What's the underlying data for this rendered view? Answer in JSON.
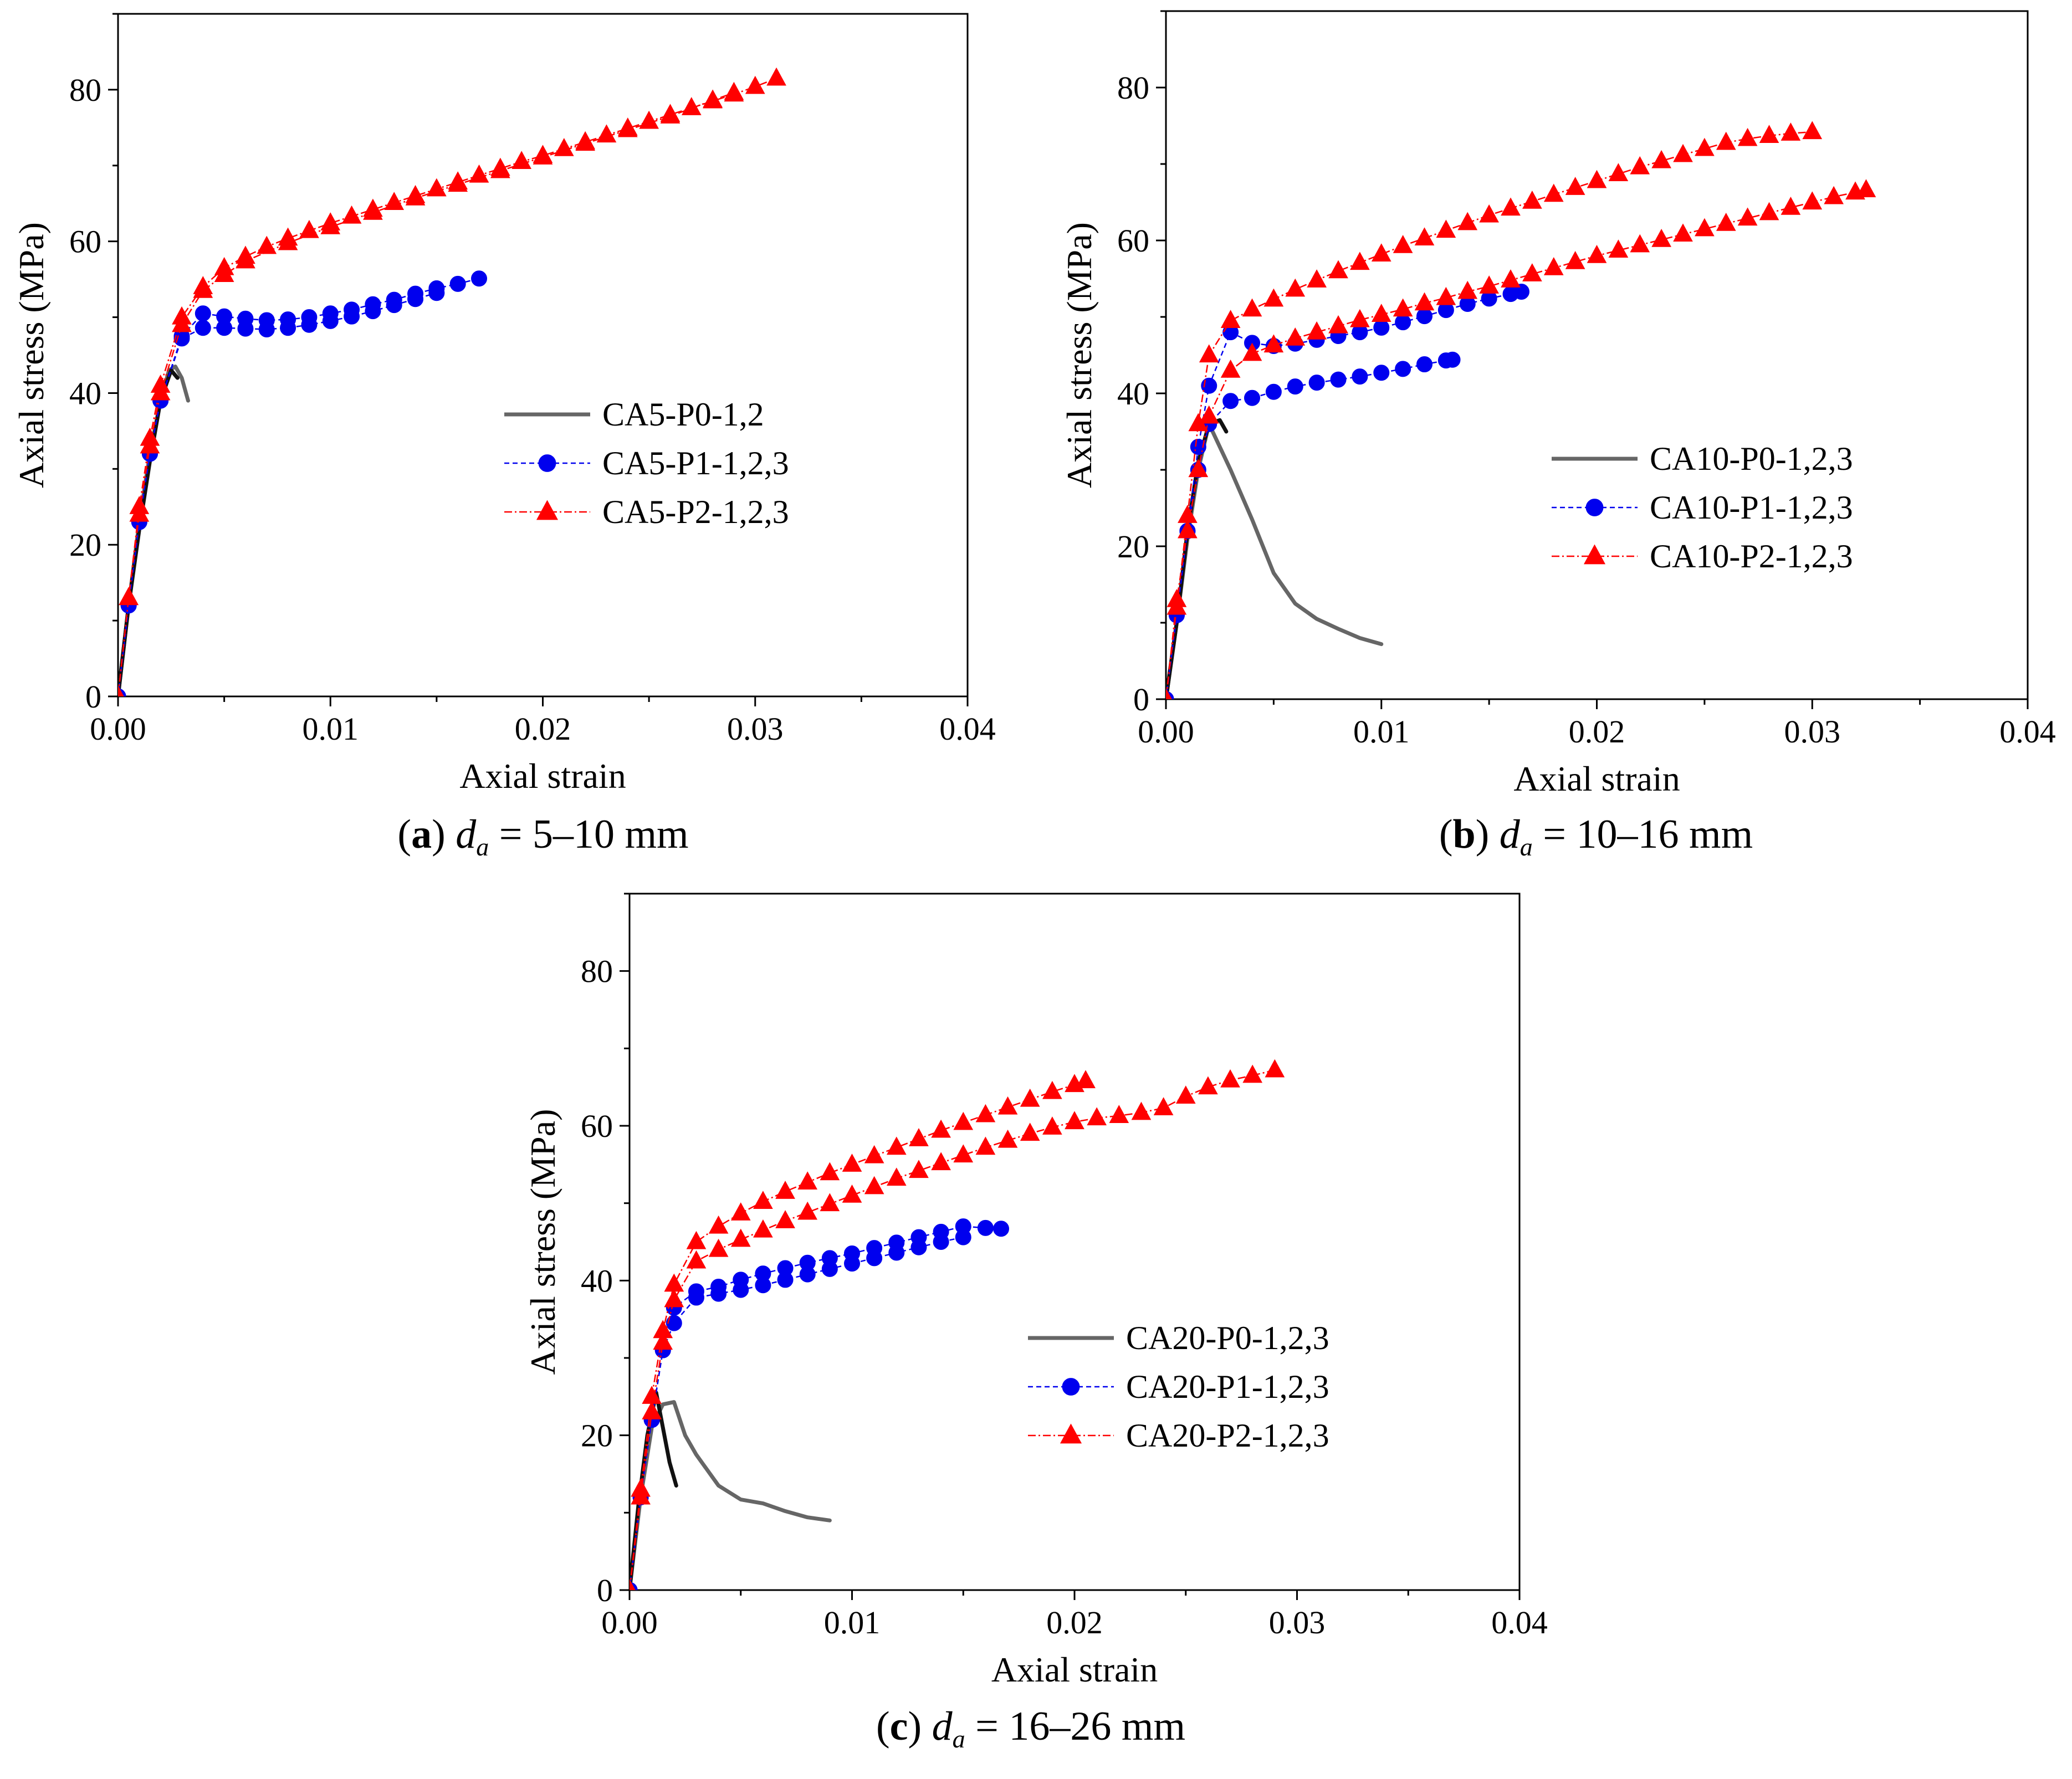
{
  "colors": {
    "P0": "#666666",
    "P0_dark": "#111111",
    "P1": "#0000ee",
    "P2": "#ff0000"
  },
  "chart_data": [
    {
      "type": "line",
      "panel_label": "a",
      "caption_var": "d",
      "caption_sub": "a",
      "caption_value": " = 5–10 mm",
      "xlabel": "Axial strain",
      "ylabel": "Axial stress (MPa)",
      "xlim": [
        0,
        0.04
      ],
      "ylim": [
        0,
        90
      ],
      "xticks": [
        0.0,
        0.01,
        0.02,
        0.03,
        0.04
      ],
      "xtick_labels": [
        "0.00",
        "0.01",
        "0.02",
        "0.03",
        "0.04"
      ],
      "yticks": [
        0,
        20,
        40,
        60,
        80
      ],
      "ytick_labels": [
        "0",
        "20",
        "40",
        "60",
        "80"
      ],
      "legend_position": "center-right",
      "series": [
        {
          "name": "CA5-P0-1,2",
          "group": "P0",
          "marker": "none",
          "x": [
            0,
            0.0005,
            0.001,
            0.0015,
            0.002,
            0.0024,
            0.0027,
            0.003,
            0.0033
          ],
          "y": [
            0,
            12,
            23,
            32,
            39,
            43,
            43.5,
            42,
            39
          ]
        },
        {
          "name": "",
          "group": "P0",
          "marker": "none",
          "dark": true,
          "x": [
            0,
            0.0005,
            0.001,
            0.0015,
            0.002,
            0.0025,
            0.0028
          ],
          "y": [
            0,
            12,
            22,
            31,
            39,
            43,
            42
          ]
        },
        {
          "name": "CA5-P1-1,2,3",
          "group": "P1",
          "marker": "circle",
          "x": [
            0,
            0.0005,
            0.001,
            0.0015,
            0.002,
            0.003,
            0.004,
            0.005,
            0.006,
            0.007,
            0.008,
            0.009,
            0.01,
            0.011,
            0.012,
            0.013,
            0.014,
            0.015,
            0.016,
            0.017
          ],
          "y": [
            0,
            12,
            23,
            32,
            39,
            47.5,
            50.5,
            50.1,
            49.8,
            49.6,
            49.7,
            50.0,
            50.5,
            51.0,
            51.7,
            52.3,
            53.1,
            53.8,
            54.4,
            55.1
          ]
        },
        {
          "name": "",
          "group": "P1",
          "marker": "circle",
          "x": [
            0,
            0.0005,
            0.001,
            0.0015,
            0.002,
            0.003,
            0.004,
            0.005,
            0.006,
            0.007,
            0.008,
            0.009,
            0.01,
            0.011,
            0.012,
            0.013,
            0.014,
            0.015
          ],
          "y": [
            0,
            12,
            23,
            32,
            39,
            47.2,
            48.6,
            48.6,
            48.5,
            48.4,
            48.6,
            49.0,
            49.5,
            50.1,
            50.8,
            51.6,
            52.4,
            53.2
          ]
        },
        {
          "name": "CA5-P2-1,2,3",
          "group": "P2",
          "marker": "triangle",
          "x": [
            0,
            0.0005,
            0.001,
            0.0015,
            0.002,
            0.003,
            0.004,
            0.005,
            0.006,
            0.007,
            0.008,
            0.009,
            0.01,
            0.011,
            0.012,
            0.013,
            0.014,
            0.015,
            0.016,
            0.017,
            0.018,
            0.019,
            0.02,
            0.021,
            0.022,
            0.023,
            0.024,
            0.025,
            0.026,
            0.027,
            0.028,
            0.029,
            0.03,
            0.031
          ],
          "y": [
            0,
            13,
            25,
            34,
            41,
            50,
            54,
            56.5,
            58,
            59.3,
            60.4,
            61.4,
            62.4,
            63.3,
            64.2,
            65.1,
            66.0,
            66.9,
            67.8,
            68.7,
            69.6,
            70.5,
            71.3,
            72.2,
            73.1,
            74.0,
            74.9,
            75.8,
            76.7,
            77.6,
            78.5,
            79.4,
            80.4,
            81.5
          ]
        },
        {
          "name": "",
          "group": "P2",
          "marker": "triangle",
          "x": [
            0,
            0.0005,
            0.001,
            0.0015,
            0.002,
            0.003,
            0.004,
            0.005,
            0.006,
            0.008,
            0.01,
            0.012,
            0.014,
            0.016,
            0.018,
            0.02,
            0.022,
            0.024,
            0.026,
            0.028,
            0.029
          ],
          "y": [
            0,
            13,
            24,
            33,
            40,
            49,
            53.5,
            55.6,
            57.4,
            59.8,
            61.9,
            63.8,
            65.7,
            67.5,
            69.3,
            71.1,
            72.9,
            74.7,
            76.5,
            78.6,
            79.6
          ]
        }
      ]
    },
    {
      "type": "line",
      "panel_label": "b",
      "caption_var": "d",
      "caption_sub": "a",
      "caption_value": " = 10–16 mm",
      "xlabel": "Axial strain",
      "ylabel": "Axial stress (MPa)",
      "xlim": [
        0,
        0.04
      ],
      "ylim": [
        0,
        90
      ],
      "xticks": [
        0.0,
        0.01,
        0.02,
        0.03,
        0.04
      ],
      "xtick_labels": [
        "0.00",
        "0.01",
        "0.02",
        "0.03",
        "0.04"
      ],
      "yticks": [
        0,
        20,
        40,
        60,
        80
      ],
      "ytick_labels": [
        "0",
        "20",
        "40",
        "60",
        "80"
      ],
      "legend_position": "center-right",
      "series": [
        {
          "name": "CA10-P0-1,2,3",
          "group": "P0",
          "marker": "none",
          "x": [
            0,
            0.0005,
            0.001,
            0.0015,
            0.002,
            0.0025,
            0.003,
            0.004,
            0.005,
            0.006,
            0.007,
            0.008,
            0.009,
            0.01
          ],
          "y": [
            0,
            10,
            21,
            30,
            36,
            33,
            30,
            23.5,
            16.5,
            12.5,
            10.5,
            9.2,
            8.0,
            7.2
          ]
        },
        {
          "name": "",
          "group": "P0",
          "marker": "none",
          "dark": true,
          "x": [
            0,
            0.0005,
            0.001,
            0.0015,
            0.002,
            0.0025,
            0.0028
          ],
          "y": [
            0,
            10,
            22,
            31,
            36,
            36.5,
            35
          ]
        },
        {
          "name": "CA10-P1-1,2,3",
          "group": "P1",
          "marker": "circle",
          "x": [
            0,
            0.0005,
            0.001,
            0.0015,
            0.002,
            0.003,
            0.004,
            0.005,
            0.006,
            0.007,
            0.008,
            0.009,
            0.01,
            0.011,
            0.012,
            0.013,
            0.014,
            0.015,
            0.016,
            0.0165
          ],
          "y": [
            0,
            11,
            22,
            33,
            41,
            48,
            46.6,
            46.2,
            46.5,
            47.0,
            47.5,
            48.0,
            48.6,
            49.3,
            50.1,
            50.9,
            51.7,
            52.4,
            53.0,
            53.3
          ]
        },
        {
          "name": "",
          "group": "P1",
          "marker": "circle",
          "x": [
            0,
            0.0005,
            0.001,
            0.0015,
            0.002,
            0.003,
            0.004,
            0.005,
            0.006,
            0.007,
            0.008,
            0.009,
            0.01,
            0.011,
            0.012,
            0.013,
            0.0133
          ],
          "y": [
            0,
            11,
            22,
            30,
            36,
            39,
            39.4,
            40.2,
            40.9,
            41.4,
            41.8,
            42.2,
            42.7,
            43.2,
            43.8,
            44.3,
            44.4
          ]
        },
        {
          "name": "CA10-P2-1,2,3",
          "group": "P2",
          "marker": "triangle",
          "x": [
            0,
            0.0005,
            0.001,
            0.0015,
            0.002,
            0.003,
            0.004,
            0.005,
            0.006,
            0.007,
            0.008,
            0.009,
            0.01,
            0.011,
            0.012,
            0.013,
            0.014,
            0.015,
            0.016,
            0.017,
            0.018,
            0.019,
            0.02,
            0.021,
            0.022,
            0.023,
            0.024,
            0.025,
            0.026,
            0.027,
            0.028,
            0.029,
            0.03
          ],
          "y": [
            0,
            12,
            24,
            36,
            45,
            49.5,
            51,
            52.3,
            53.6,
            54.8,
            56.0,
            57.1,
            58.2,
            59.3,
            60.3,
            61.3,
            62.3,
            63.3,
            64.2,
            65.1,
            66.0,
            66.9,
            67.8,
            68.7,
            69.6,
            70.4,
            71.2,
            72.0,
            72.8,
            73.3,
            73.7,
            74.0,
            74.2
          ]
        },
        {
          "name": "",
          "group": "P2",
          "marker": "triangle",
          "x": [
            0,
            0.0005,
            0.001,
            0.0015,
            0.002,
            0.003,
            0.004,
            0.005,
            0.006,
            0.007,
            0.008,
            0.009,
            0.01,
            0.011,
            0.012,
            0.013,
            0.014,
            0.015,
            0.016,
            0.017,
            0.018,
            0.019,
            0.02,
            0.021,
            0.022,
            0.023,
            0.024,
            0.025,
            0.026,
            0.027,
            0.028,
            0.029,
            0.03,
            0.031,
            0.032,
            0.0325
          ],
          "y": [
            0,
            13,
            22,
            30,
            37,
            43,
            45.2,
            46.3,
            47.2,
            48.0,
            48.8,
            49.6,
            50.3,
            51.0,
            51.8,
            52.5,
            53.3,
            54.0,
            54.8,
            55.6,
            56.4,
            57.2,
            58.0,
            58.7,
            59.4,
            60.1,
            60.8,
            61.5,
            62.2,
            62.9,
            63.6,
            64.3,
            65.0,
            65.7,
            66.3,
            66.6
          ]
        }
      ]
    },
    {
      "type": "line",
      "panel_label": "c",
      "caption_var": "d",
      "caption_sub": "a",
      "caption_value": " = 16–26 mm",
      "xlabel": "Axial strain",
      "ylabel": "Axial stress (MPa)",
      "xlim": [
        0,
        0.04
      ],
      "ylim": [
        0,
        90
      ],
      "xticks": [
        0.0,
        0.01,
        0.02,
        0.03,
        0.04
      ],
      "xtick_labels": [
        "0.00",
        "0.01",
        "0.02",
        "0.03",
        "0.04"
      ],
      "yticks": [
        0,
        20,
        40,
        60,
        80
      ],
      "ytick_labels": [
        "0",
        "20",
        "40",
        "60",
        "80"
      ],
      "legend_position": "lower-right",
      "series": [
        {
          "name": "CA20-P0-1,2,3",
          "group": "P0",
          "marker": "none",
          "x": [
            0,
            0.0005,
            0.001,
            0.0015,
            0.002,
            0.0025,
            0.003,
            0.004,
            0.005,
            0.006,
            0.007,
            0.008,
            0.009
          ],
          "y": [
            0,
            12,
            21,
            24,
            24.3,
            20,
            17.5,
            13.5,
            11.7,
            11.2,
            10.2,
            9.4,
            9.0
          ]
        },
        {
          "name": "",
          "group": "P0",
          "marker": "none",
          "dark": true,
          "x": [
            0,
            0.0004,
            0.0008,
            0.0012,
            0.0015,
            0.0018,
            0.0021
          ],
          "y": [
            0,
            11,
            20,
            25.5,
            21,
            16.5,
            13.5
          ]
        },
        {
          "name": "CA20-P1-1,2,3",
          "group": "P1",
          "marker": "circle",
          "x": [
            0,
            0.0005,
            0.001,
            0.0015,
            0.002,
            0.003,
            0.004,
            0.005,
            0.006,
            0.007,
            0.008,
            0.009,
            0.01,
            0.011,
            0.012,
            0.013,
            0.014,
            0.015,
            0.016,
            0.0167
          ],
          "y": [
            0,
            12,
            22,
            31,
            36.5,
            38.6,
            39.2,
            40.1,
            40.9,
            41.6,
            42.3,
            42.9,
            43.5,
            44.2,
            44.9,
            45.6,
            46.3,
            47.0,
            46.8,
            46.7
          ]
        },
        {
          "name": "",
          "group": "P1",
          "marker": "circle",
          "x": [
            0,
            0.0005,
            0.001,
            0.0015,
            0.002,
            0.003,
            0.004,
            0.005,
            0.006,
            0.007,
            0.008,
            0.009,
            0.01,
            0.011,
            0.012,
            0.013,
            0.014,
            0.015
          ],
          "y": [
            0,
            12,
            22,
            31,
            34.5,
            37.8,
            38.3,
            38.8,
            39.4,
            40.1,
            40.8,
            41.5,
            42.2,
            42.9,
            43.6,
            44.3,
            45.0,
            45.6
          ]
        },
        {
          "name": "CA20-P2-1,2,3",
          "group": "P2",
          "marker": "triangle",
          "x": [
            0,
            0.0005,
            0.001,
            0.0015,
            0.002,
            0.003,
            0.004,
            0.005,
            0.006,
            0.007,
            0.008,
            0.009,
            0.01,
            0.011,
            0.012,
            0.013,
            0.014,
            0.015,
            0.016,
            0.017,
            0.018,
            0.019,
            0.02,
            0.0205
          ],
          "y": [
            0,
            13,
            25,
            33.5,
            39.5,
            45,
            47,
            48.7,
            50.2,
            51.5,
            52.7,
            53.9,
            55.0,
            56.1,
            57.2,
            58.3,
            59.4,
            60.4,
            61.4,
            62.4,
            63.4,
            64.4,
            65.3,
            65.8
          ]
        },
        {
          "name": "",
          "group": "P2",
          "marker": "triangle",
          "x": [
            0,
            0.0005,
            0.001,
            0.0015,
            0.002,
            0.003,
            0.004,
            0.005,
            0.006,
            0.007,
            0.008,
            0.009,
            0.01,
            0.011,
            0.012,
            0.013,
            0.014,
            0.015,
            0.016,
            0.017,
            0.018,
            0.019,
            0.02,
            0.021,
            0.022,
            0.023,
            0.024,
            0.025,
            0.026,
            0.027,
            0.028,
            0.029
          ],
          "y": [
            0,
            12,
            23,
            32,
            37.5,
            42.5,
            44.0,
            45.3,
            46.5,
            47.7,
            48.8,
            49.9,
            51.0,
            52.1,
            53.2,
            54.2,
            55.2,
            56.2,
            57.2,
            58.1,
            59.0,
            59.8,
            60.5,
            61.0,
            61.3,
            61.7,
            62.3,
            63.8,
            65.0,
            65.9,
            66.5,
            67.2
          ]
        }
      ]
    }
  ]
}
